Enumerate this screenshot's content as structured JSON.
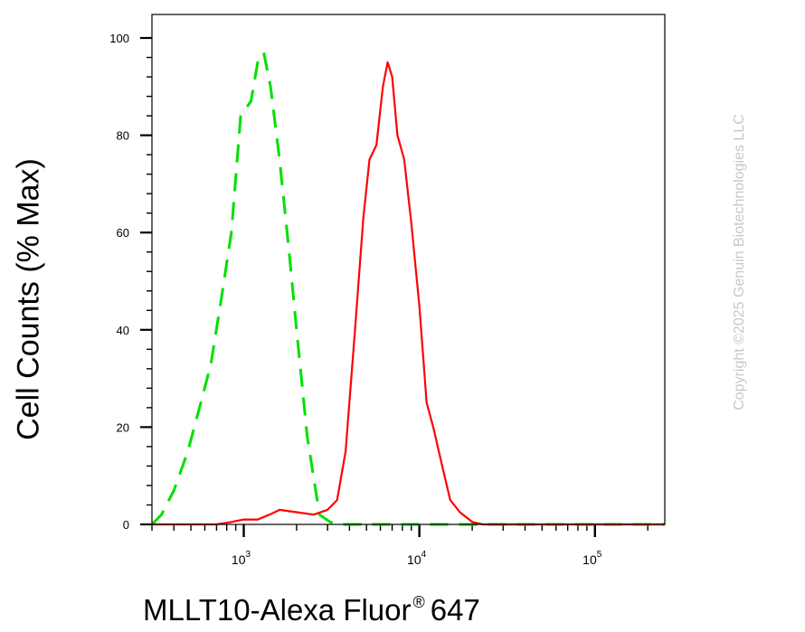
{
  "chart_data": {
    "type": "line",
    "xlabel": "MLLT10-Alexa Fluor",
    "xlabel_mark": "®",
    "xlabel_suffix": "647",
    "ylabel": "Cell Counts (% Max)",
    "xscale": "log",
    "xlim": [
      300,
      250000
    ],
    "ylim": [
      0,
      100
    ],
    "yticks": [
      0,
      20,
      40,
      60,
      80,
      100
    ],
    "xticks": [
      {
        "value": 1000,
        "base": "10",
        "exp": "3"
      },
      {
        "value": 10000,
        "base": "10",
        "exp": "4"
      },
      {
        "value": 100000,
        "base": "10",
        "exp": "5"
      }
    ],
    "grid": false,
    "legend": "none",
    "watermark": "Copyright ©2025 Genuin Biotechnologies LLC",
    "series": [
      {
        "color": "#00e000",
        "dash": "dashed",
        "x": [
          300,
          340,
          400,
          480,
          560,
          650,
          750,
          850,
          960,
          1100,
          1200,
          1300,
          1420,
          1600,
          1800,
          2000,
          2300,
          2700,
          3100,
          3500,
          4000,
          5000,
          250000
        ],
        "y": [
          0,
          2,
          7,
          15,
          24,
          33,
          47,
          60,
          84,
          87,
          95,
          97,
          90,
          75,
          57,
          40,
          18,
          2,
          0.5,
          0,
          0,
          0,
          0
        ]
      },
      {
        "color": "#ff0000",
        "dash": "solid",
        "x": [
          300,
          700,
          850,
          1000,
          1200,
          1400,
          1600,
          2000,
          2500,
          3000,
          3400,
          3800,
          4300,
          4800,
          5200,
          5700,
          6200,
          6600,
          7000,
          7500,
          8200,
          9000,
          10000,
          11000,
          12000,
          13500,
          15000,
          17000,
          20000,
          23000,
          25000,
          40000,
          250000
        ],
        "y": [
          0,
          0,
          0.5,
          1,
          1,
          2,
          3,
          2.5,
          2,
          3,
          5,
          15,
          40,
          63,
          75,
          78,
          90,
          95,
          92,
          80,
          75,
          62,
          45,
          25,
          20,
          12,
          5,
          2.5,
          0.5,
          0,
          0,
          0,
          0
        ]
      }
    ]
  }
}
